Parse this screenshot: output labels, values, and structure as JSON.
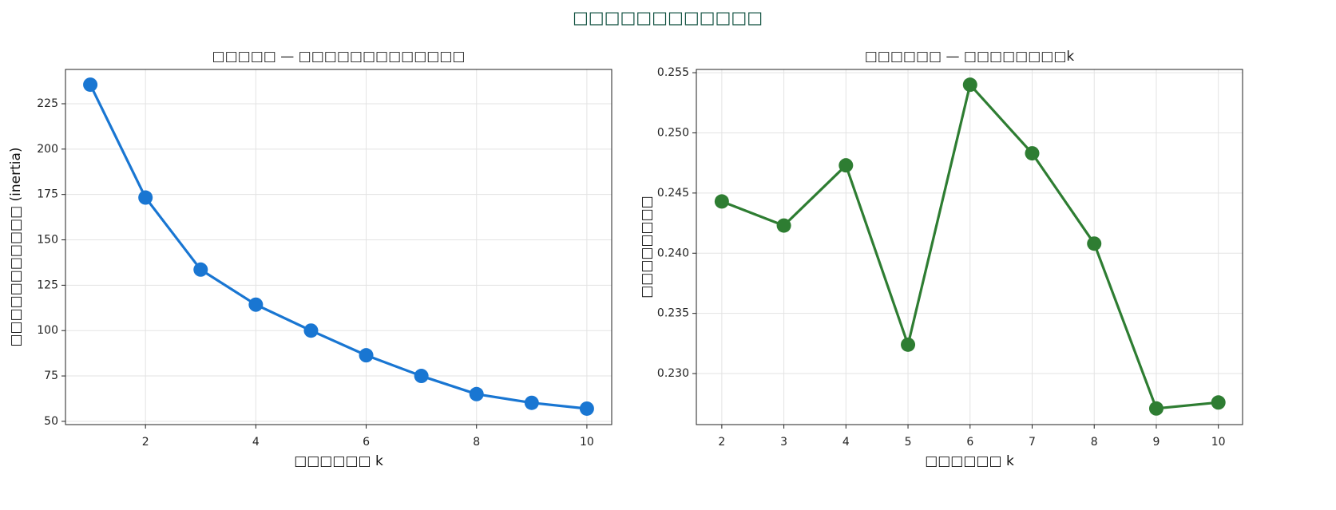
{
  "title": "□□□□□□□□□□□□",
  "chart_data": [
    {
      "type": "line",
      "title": "□□□□□ — □□□□□□□□□□□□□",
      "title_color": "#1565c0",
      "x_label": "□□□□□□ k",
      "y_label": "□□□□□□□□□□□ (inertia)",
      "x": [
        1,
        2,
        3,
        4,
        5,
        6,
        7,
        8,
        9,
        10
      ],
      "series": [
        {
          "color": "#1976d2",
          "values": [
            235.5,
            173.3,
            133.6,
            114.3,
            100.0,
            86.4,
            75.0,
            65.0,
            60.2,
            57.0
          ]
        }
      ],
      "xlim": [
        0.55,
        10.45
      ],
      "ylim": [
        48.2,
        243.9
      ],
      "xticks": [
        2,
        4,
        6,
        8,
        10
      ],
      "yticks": [
        50,
        75,
        100,
        125,
        150,
        175,
        200,
        225
      ],
      "grid": true
    },
    {
      "type": "line",
      "title": "□□□□□□ — □□□□□□□□k",
      "title_color": "#2e7d32",
      "x_label": "□□□□□□ k",
      "y_label": "□□□□□□□□",
      "x": [
        2,
        3,
        4,
        5,
        6,
        7,
        8,
        9,
        10
      ],
      "series": [
        {
          "color": "#2e7d32",
          "values": [
            0.2443,
            0.2423,
            0.2473,
            0.2324,
            0.254,
            0.2483,
            0.2408,
            0.2271,
            0.2276
          ]
        }
      ],
      "xlim": [
        1.59,
        10.39
      ],
      "ylim": [
        0.22576,
        0.25527
      ],
      "xticks": [
        2,
        3,
        4,
        5,
        6,
        7,
        8,
        9,
        10
      ],
      "yticks": [
        {
          "value": 0.23,
          "label": "0.230"
        },
        0.235,
        {
          "value": 0.24,
          "label": "0.240"
        },
        0.245,
        {
          "value": 0.25,
          "label": "0.250"
        },
        0.255
      ],
      "grid": true
    }
  ]
}
